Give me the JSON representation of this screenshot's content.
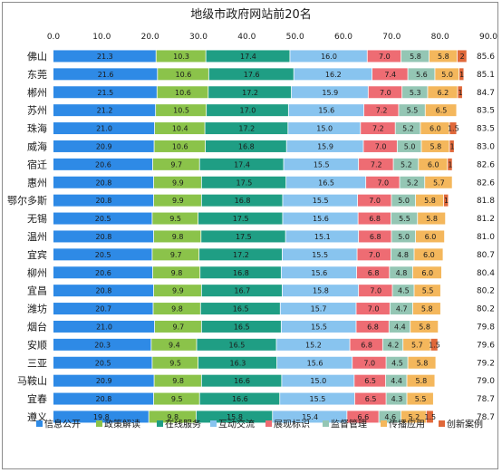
{
  "chart_data": {
    "type": "bar",
    "orientation": "horizontal",
    "stacked": true,
    "title": "地级市政府网站前20名",
    "xlim": [
      0,
      90
    ],
    "xticks": [
      "0.0",
      "10.0",
      "20.0",
      "30.0",
      "40.0",
      "50.0",
      "60.0",
      "70.0",
      "80.0",
      "90.0"
    ],
    "categories": [
      "佛山",
      "东莞",
      "郴州",
      "苏州",
      "珠海",
      "威海",
      "宿迁",
      "惠州",
      "鄂尔多斯",
      "无锡",
      "温州",
      "宜宾",
      "柳州",
      "宜昌",
      "潍坊",
      "烟台",
      "安顺",
      "三亚",
      "马鞍山",
      "宜春",
      "遵义"
    ],
    "totals": [
      "85.6",
      "85.1",
      "84.7",
      "83.5",
      "83.5",
      "83.0",
      "82.6",
      "82.6",
      "81.8",
      "81.2",
      "81.0",
      "80.7",
      "80.4",
      "80.2",
      "80.2",
      "79.8",
      "79.6",
      "79.2",
      "79.0",
      "78.7",
      "78.7"
    ],
    "legend_position": "bottom",
    "grid": false,
    "series": [
      {
        "name": "信息公开",
        "color": "#2e8ae6",
        "values": [
          21.3,
          21.6,
          21.5,
          21.2,
          21.0,
          20.9,
          20.6,
          20.8,
          20.8,
          20.5,
          20.8,
          20.5,
          20.6,
          20.8,
          20.7,
          21.0,
          20.3,
          20.5,
          20.9,
          20.8,
          19.8
        ],
        "labels": [
          "21.3",
          "21.6",
          "21.5",
          "21.2",
          "21.0",
          "20.9",
          "20.6",
          "20.8",
          "20.8",
          "20.5",
          "20.8",
          "20.5",
          "20.6",
          "20.8",
          "20.7",
          "21.0",
          "20.3",
          "20.5",
          "20.9",
          "20.8",
          "19.8"
        ]
      },
      {
        "name": "政策解读",
        "color": "#8bc34a",
        "values": [
          10.3,
          10.6,
          10.6,
          10.5,
          10.4,
          10.6,
          9.7,
          9.9,
          9.9,
          9.5,
          9.8,
          9.7,
          9.8,
          9.9,
          9.8,
          9.7,
          9.4,
          9.5,
          9.8,
          9.5,
          9.8
        ],
        "labels": [
          "10.3",
          "10.6",
          "10.6",
          "10.5",
          "10.4",
          "10.6",
          "9.7",
          "9.9",
          "9.9",
          "9.5",
          "9.8",
          "9.7",
          "9.8",
          "9.9",
          "9.8",
          "9.7",
          "9.4",
          "9.5",
          "9.8",
          "9.5",
          "9.8"
        ]
      },
      {
        "name": "在线服务",
        "color": "#1f9e84",
        "values": [
          17.4,
          17.6,
          17.2,
          17.0,
          17.2,
          16.8,
          17.4,
          17.5,
          16.8,
          17.5,
          17.5,
          17.2,
          16.8,
          16.7,
          16.5,
          16.5,
          16.5,
          16.3,
          16.6,
          16.6,
          15.8
        ],
        "labels": [
          "17.4",
          "17.6",
          "17.2",
          "17.0",
          "17.2",
          "16.8",
          "17.4",
          "17.5",
          "16.8",
          "17.5",
          "17.5",
          "17.2",
          "16.8",
          "16.7",
          "16.5",
          "16.5",
          "16.5",
          "16.3",
          "16.6",
          "16.6",
          "15.8"
        ]
      },
      {
        "name": "互动交流",
        "color": "#88c4ef",
        "values": [
          16.0,
          16.2,
          15.9,
          15.6,
          15.0,
          15.9,
          15.5,
          16.5,
          15.5,
          15.6,
          15.1,
          15.5,
          15.6,
          15.8,
          15.7,
          15.5,
          15.2,
          15.6,
          15.0,
          15.5,
          15.4
        ],
        "labels": [
          "16.0",
          "16.2",
          "15.9",
          "15.6",
          "15.0",
          "15.9",
          "15.5",
          "16.5",
          "15.5",
          "15.6",
          "15.1",
          "15.5",
          "15.6",
          "15.8",
          "15.7",
          "15.5",
          "15.2",
          "15.6",
          "15.0",
          "15.5",
          "15.4"
        ]
      },
      {
        "name": "展现标识",
        "color": "#ee6c73",
        "values": [
          7.0,
          7.4,
          7.0,
          7.2,
          7.2,
          7.0,
          7.2,
          7.0,
          7.0,
          6.8,
          6.8,
          7.0,
          6.8,
          7.0,
          7.0,
          6.8,
          6.8,
          7.0,
          6.5,
          6.5,
          6.6
        ],
        "labels": [
          "7.0",
          "7.4",
          "7.0",
          "7.2",
          "7.2",
          "7.0",
          "7.2",
          "7.0",
          "7.0",
          "6.8",
          "6.8",
          "7.0",
          "6.8",
          "7.0",
          "7.0",
          "6.8",
          "6.8",
          "7.0",
          "6.5",
          "6.5",
          "6.6"
        ]
      },
      {
        "name": "监督管理",
        "color": "#94c6b4",
        "values": [
          5.8,
          5.6,
          5.3,
          5.5,
          5.2,
          5.0,
          5.2,
          5.2,
          5.0,
          5.5,
          5.0,
          4.8,
          4.8,
          4.5,
          4.7,
          4.4,
          4.2,
          4.5,
          4.4,
          4.3,
          4.6
        ],
        "labels": [
          "5.8",
          "5.6",
          "5.3",
          "5.5",
          "5.2",
          "5.0",
          "5.2",
          "5.2",
          "5.0",
          "5.5",
          "5.0",
          "4.8",
          "4.8",
          "4.5",
          "4.7",
          "4.4",
          "4.2",
          "4.5",
          "4.4",
          "4.3",
          "4.6"
        ]
      },
      {
        "name": "传播应用",
        "color": "#f4b75c",
        "values": [
          5.8,
          5.0,
          6.2,
          6.5,
          6.0,
          5.8,
          6.0,
          5.7,
          5.8,
          5.8,
          6.0,
          6.0,
          6.0,
          5.5,
          5.8,
          5.8,
          5.7,
          5.8,
          5.8,
          5.5,
          5.2
        ],
        "labels": [
          "5.8",
          "5.0",
          "6.2",
          "6.5",
          "6.0",
          "5.8",
          "6.0",
          "5.7",
          "5.8",
          "5.8",
          "6.0",
          "6.0",
          "6.0",
          "5.5",
          "5.8",
          "5.8",
          "5.7",
          "5.8",
          "5.8",
          "5.5",
          "5.2"
        ]
      },
      {
        "name": "创新案例",
        "color": "#e0683a",
        "values": [
          2.0,
          1.0,
          1.0,
          0.0,
          1.5,
          1.0,
          1.0,
          0.0,
          1.0,
          0.0,
          0.0,
          0.0,
          0.0,
          0.0,
          0.0,
          0.0,
          1.5,
          0.0,
          0.0,
          0.0,
          1.5
        ],
        "labels": [
          "2",
          "1",
          "1",
          "",
          "1.5",
          "1",
          "1",
          "",
          "1",
          "",
          "",
          "",
          "",
          "",
          "",
          "",
          "1.5",
          "",
          "",
          "",
          "1.5"
        ]
      }
    ]
  }
}
